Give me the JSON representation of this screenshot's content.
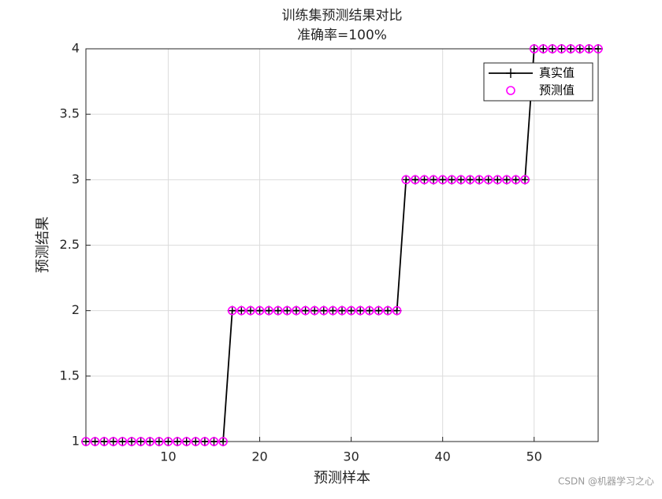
{
  "chart_data": {
    "type": "line",
    "title": [
      "训练集预测结果对比",
      "准确率=100%"
    ],
    "x_label": "预测样本",
    "y_label": "预测结果",
    "x": [
      1,
      2,
      3,
      4,
      5,
      6,
      7,
      8,
      9,
      10,
      11,
      12,
      13,
      14,
      15,
      16,
      17,
      18,
      19,
      20,
      21,
      22,
      23,
      24,
      25,
      26,
      27,
      28,
      29,
      30,
      31,
      32,
      33,
      34,
      35,
      36,
      37,
      38,
      39,
      40,
      41,
      42,
      43,
      44,
      45,
      46,
      47,
      48,
      49,
      50,
      51,
      52,
      53,
      54,
      55,
      56,
      57
    ],
    "series": [
      {
        "name": "真实值",
        "color": "#000000",
        "marker": "plus",
        "values": [
          1,
          1,
          1,
          1,
          1,
          1,
          1,
          1,
          1,
          1,
          1,
          1,
          1,
          1,
          1,
          1,
          2,
          2,
          2,
          2,
          2,
          2,
          2,
          2,
          2,
          2,
          2,
          2,
          2,
          2,
          2,
          2,
          2,
          2,
          2,
          3,
          3,
          3,
          3,
          3,
          3,
          3,
          3,
          3,
          3,
          3,
          3,
          3,
          3,
          4,
          4,
          4,
          4,
          4,
          4,
          4,
          4
        ]
      },
      {
        "name": "预测值",
        "color": "#ff00ff",
        "marker": "circle",
        "values": [
          1,
          1,
          1,
          1,
          1,
          1,
          1,
          1,
          1,
          1,
          1,
          1,
          1,
          1,
          1,
          1,
          2,
          2,
          2,
          2,
          2,
          2,
          2,
          2,
          2,
          2,
          2,
          2,
          2,
          2,
          2,
          2,
          2,
          2,
          2,
          3,
          3,
          3,
          3,
          3,
          3,
          3,
          3,
          3,
          3,
          3,
          3,
          3,
          3,
          4,
          4,
          4,
          4,
          4,
          4,
          4,
          4
        ]
      }
    ],
    "xlim": [
      1,
      57
    ],
    "xticks": [
      10,
      20,
      30,
      40,
      50
    ],
    "ylim": [
      1,
      4
    ],
    "yticks": [
      1,
      1.5,
      2,
      2.5,
      3,
      3.5,
      4
    ],
    "grid": true,
    "legend": "upper right",
    "watermark": "CSDN @机器学习之心"
  }
}
